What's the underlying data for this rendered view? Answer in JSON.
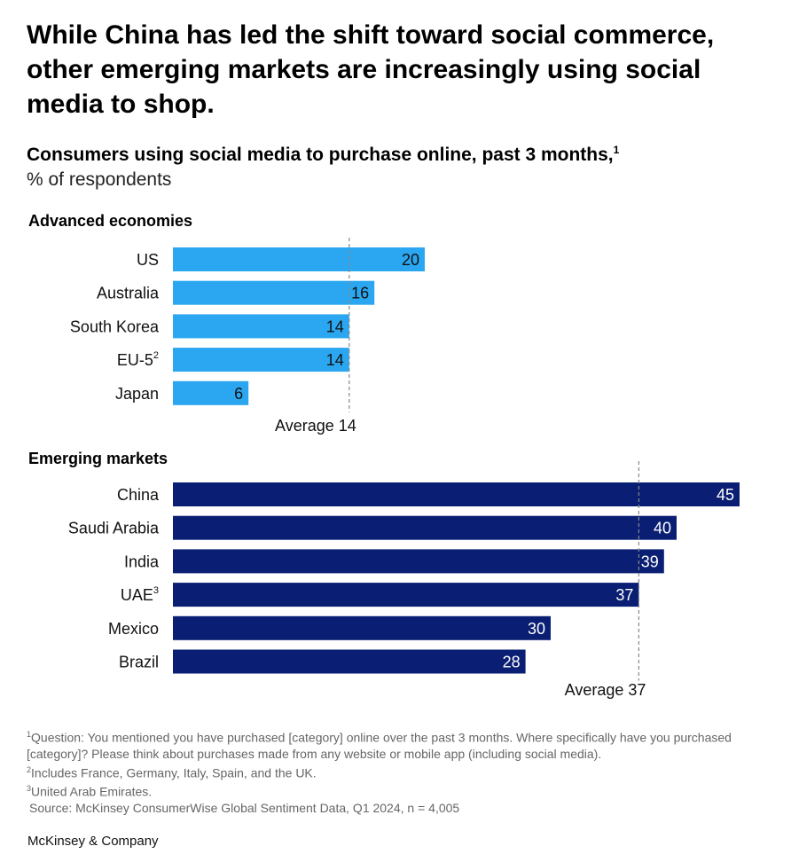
{
  "headline": "While China has led the shift toward social commerce, other emerging markets are increasingly using social media to shop.",
  "subtitle": {
    "text": "Consumers using social media to purchase online, past 3 months,",
    "note": "1"
  },
  "unit_label": "% of respondents",
  "chart_data": [
    {
      "type": "bar",
      "orientation": "horizontal",
      "title": "Advanced economies",
      "categories": [
        {
          "label": "US",
          "note": ""
        },
        {
          "label": "Australia",
          "note": ""
        },
        {
          "label": "South Korea",
          "note": ""
        },
        {
          "label": "EU-5",
          "note": "2"
        },
        {
          "label": "Japan",
          "note": ""
        }
      ],
      "values": [
        20,
        16,
        14,
        14,
        6
      ],
      "average": {
        "label": "Average 14",
        "value": 14
      },
      "bar_color": "#2AA7F0",
      "value_label_color": "#111111"
    },
    {
      "type": "bar",
      "orientation": "horizontal",
      "title": "Emerging markets",
      "categories": [
        {
          "label": "China",
          "note": ""
        },
        {
          "label": "Saudi Arabia",
          "note": ""
        },
        {
          "label": "India",
          "note": ""
        },
        {
          "label": "UAE",
          "note": "3"
        },
        {
          "label": "Mexico",
          "note": ""
        },
        {
          "label": "Brazil",
          "note": ""
        }
      ],
      "values": [
        45,
        40,
        39,
        37,
        30,
        28
      ],
      "average": {
        "label": "Average 37",
        "value": 37
      },
      "bar_color": "#0A1F73",
      "value_label_color": "#ffffff"
    }
  ],
  "footnotes": [
    {
      "mark": "1",
      "text": "Question: You mentioned you have purchased [category] online over the past 3 months. Where specifically have you purchased [category]? Please think about purchases made from any website or mobile app (including social media)."
    },
    {
      "mark": "2",
      "text": "Includes France, Germany, Italy, Spain, and the UK."
    },
    {
      "mark": "3",
      "text": "United Arab Emirates."
    }
  ],
  "source": "Source: McKinsey ConsumerWise Global Sentiment Data, Q1 2024, n = 4,005",
  "brand": "McKinsey & Company"
}
